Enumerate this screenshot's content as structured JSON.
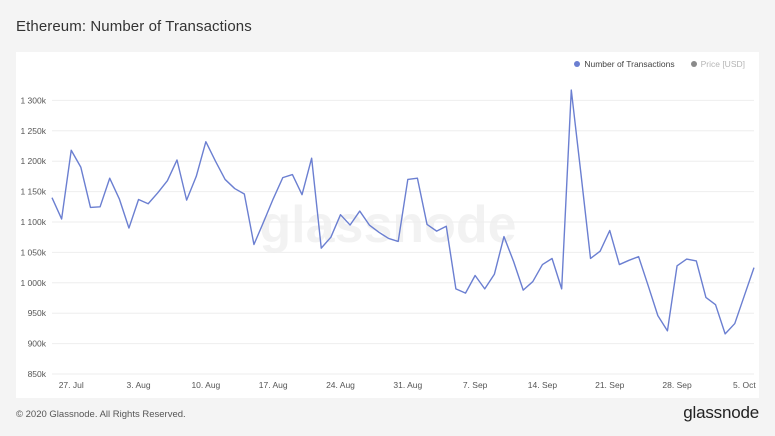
{
  "title": "Ethereum: Number of Transactions",
  "footer": {
    "copyright": "© 2020 Glassnode. All Rights Reserved.",
    "logo": "glassnode"
  },
  "watermark": "glassnode",
  "colors": {
    "series": "#6b7fd1",
    "price_dot": "#8a8a8a",
    "grid": "#eeeeee",
    "tick_text": "#555555"
  },
  "chart_data": {
    "type": "line",
    "title": "Ethereum: Number of Transactions",
    "legend": [
      {
        "name": "Number of Transactions",
        "active": true
      },
      {
        "name": "Price [USD]",
        "active": false
      }
    ],
    "legend_position": "top-right",
    "grid": true,
    "ylim": [
      850000,
      1350000
    ],
    "y_ticks": [
      {
        "value": 850000,
        "label": "850k"
      },
      {
        "value": 900000,
        "label": "900k"
      },
      {
        "value": 950000,
        "label": "950k"
      },
      {
        "value": 1000000,
        "label": "1 000k"
      },
      {
        "value": 1050000,
        "label": "1 050k"
      },
      {
        "value": 1100000,
        "label": "1 100k"
      },
      {
        "value": 1150000,
        "label": "1 150k"
      },
      {
        "value": 1200000,
        "label": "1 200k"
      },
      {
        "value": 1250000,
        "label": "1 250k"
      },
      {
        "value": 1300000,
        "label": "1 300k"
      }
    ],
    "x_ticks": [
      {
        "date": "2020-07-27",
        "label": "27. Jul"
      },
      {
        "date": "2020-08-03",
        "label": "3. Aug"
      },
      {
        "date": "2020-08-10",
        "label": "10. Aug"
      },
      {
        "date": "2020-08-17",
        "label": "17. Aug"
      },
      {
        "date": "2020-08-24",
        "label": "24. Aug"
      },
      {
        "date": "2020-08-31",
        "label": "31. Aug"
      },
      {
        "date": "2020-09-07",
        "label": "7. Sep"
      },
      {
        "date": "2020-09-14",
        "label": "14. Sep"
      },
      {
        "date": "2020-09-21",
        "label": "21. Sep"
      },
      {
        "date": "2020-09-28",
        "label": "28. Sep"
      },
      {
        "date": "2020-10-05",
        "label": "5. Oct"
      }
    ],
    "x_range": [
      "2020-07-25",
      "2020-10-06"
    ],
    "series": [
      {
        "name": "Number of Transactions",
        "points": [
          [
            "2020-07-25",
            1140000
          ],
          [
            "2020-07-26",
            1105000
          ],
          [
            "2020-07-27",
            1218000
          ],
          [
            "2020-07-28",
            1190000
          ],
          [
            "2020-07-29",
            1124000
          ],
          [
            "2020-07-30",
            1125000
          ],
          [
            "2020-07-31",
            1172000
          ],
          [
            "2020-08-01",
            1138000
          ],
          [
            "2020-08-02",
            1090000
          ],
          [
            "2020-08-03",
            1137000
          ],
          [
            "2020-08-04",
            1130000
          ],
          [
            "2020-08-05",
            1148000
          ],
          [
            "2020-08-06",
            1168000
          ],
          [
            "2020-08-07",
            1202000
          ],
          [
            "2020-08-08",
            1136000
          ],
          [
            "2020-08-09",
            1175000
          ],
          [
            "2020-08-10",
            1232000
          ],
          [
            "2020-08-11",
            1200000
          ],
          [
            "2020-08-12",
            1170000
          ],
          [
            "2020-08-13",
            1155000
          ],
          [
            "2020-08-14",
            1146000
          ],
          [
            "2020-08-15",
            1063000
          ],
          [
            "2020-08-16",
            1100000
          ],
          [
            "2020-08-17",
            1138000
          ],
          [
            "2020-08-18",
            1173000
          ],
          [
            "2020-08-19",
            1178000
          ],
          [
            "2020-08-20",
            1145000
          ],
          [
            "2020-08-21",
            1205000
          ],
          [
            "2020-08-22",
            1057000
          ],
          [
            "2020-08-23",
            1075000
          ],
          [
            "2020-08-24",
            1112000
          ],
          [
            "2020-08-25",
            1095000
          ],
          [
            "2020-08-26",
            1118000
          ],
          [
            "2020-08-27",
            1095000
          ],
          [
            "2020-08-28",
            1083000
          ],
          [
            "2020-08-29",
            1073000
          ],
          [
            "2020-08-30",
            1068000
          ],
          [
            "2020-08-31",
            1170000
          ],
          [
            "2020-09-01",
            1172000
          ],
          [
            "2020-09-02",
            1096000
          ],
          [
            "2020-09-03",
            1085000
          ],
          [
            "2020-09-04",
            1093000
          ],
          [
            "2020-09-05",
            990000
          ],
          [
            "2020-09-06",
            983000
          ],
          [
            "2020-09-07",
            1012000
          ],
          [
            "2020-09-08",
            990000
          ],
          [
            "2020-09-09",
            1014000
          ],
          [
            "2020-09-10",
            1076000
          ],
          [
            "2020-09-11",
            1035000
          ],
          [
            "2020-09-12",
            988000
          ],
          [
            "2020-09-13",
            1002000
          ],
          [
            "2020-09-14",
            1030000
          ],
          [
            "2020-09-15",
            1040000
          ],
          [
            "2020-09-16",
            990000
          ],
          [
            "2020-09-17",
            1317000
          ],
          [
            "2020-09-18",
            1180000
          ],
          [
            "2020-09-19",
            1040000
          ],
          [
            "2020-09-20",
            1052000
          ],
          [
            "2020-09-21",
            1086000
          ],
          [
            "2020-09-22",
            1030000
          ],
          [
            "2020-09-23",
            1037000
          ],
          [
            "2020-09-24",
            1043000
          ],
          [
            "2020-09-25",
            995000
          ],
          [
            "2020-09-26",
            946000
          ],
          [
            "2020-09-27",
            921000
          ],
          [
            "2020-09-28",
            1028000
          ],
          [
            "2020-09-29",
            1039000
          ],
          [
            "2020-09-30",
            1036000
          ],
          [
            "2020-10-01",
            976000
          ],
          [
            "2020-10-02",
            964000
          ],
          [
            "2020-10-03",
            916000
          ],
          [
            "2020-10-04",
            933000
          ],
          [
            "2020-10-05",
            979000
          ],
          [
            "2020-10-06",
            1025000
          ]
        ]
      }
    ]
  }
}
